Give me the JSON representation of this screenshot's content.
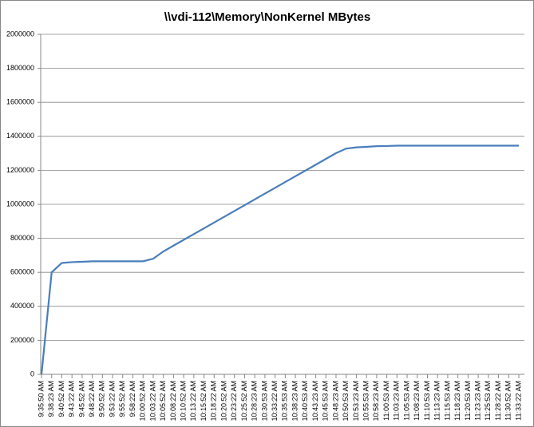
{
  "chart_data": {
    "type": "line",
    "title": "\\\\vdi-112\\Memory\\NonKernel MBytes",
    "categories": [
      "9:35:50 AM",
      "9:38:23 AM",
      "9:40:52 AM",
      "9:43:22 AM",
      "9:45:52 AM",
      "9:48:22 AM",
      "9:50:52 AM",
      "9:53:22 AM",
      "9:55:52 AM",
      "9:58:22 AM",
      "10:00:52 AM",
      "10:03:22 AM",
      "10:05:52 AM",
      "10:08:22 AM",
      "10:10:52 AM",
      "10:13:22 AM",
      "10:15:52 AM",
      "10:18:22 AM",
      "10:20:52 AM",
      "10:23:22 AM",
      "10:25:52 AM",
      "10:28:23 AM",
      "10:30:53 AM",
      "10:33:22 AM",
      "10:35:53 AM",
      "10:38:23 AM",
      "10:40:53 AM",
      "10:43:23 AM",
      "10:45:53 AM",
      "10:48:23 AM",
      "10:50:53 AM",
      "10:53:23 AM",
      "10:55:53 AM",
      "10:58:23 AM",
      "11:00:53 AM",
      "11:03:23 AM",
      "11:05:53 AM",
      "11:08:23 AM",
      "11:10:53 AM",
      "11:13:23 AM",
      "11:15:53 AM",
      "11:18:23 AM",
      "11:20:53 AM",
      "11:23:23 AM",
      "11:25:53 AM",
      "11:28:22 AM",
      "11:30:52 AM",
      "11:33:22 AM"
    ],
    "series": [
      {
        "name": "NonKernel MBytes",
        "color": "#4a7ebb",
        "values": [
          0,
          600000,
          655000,
          660000,
          662000,
          665000,
          665000,
          665000,
          665000,
          665000,
          665000,
          680000,
          723000,
          757000,
          791000,
          825000,
          859000,
          893000,
          927000,
          961000,
          995000,
          1029000,
          1063000,
          1097000,
          1131000,
          1165000,
          1199000,
          1233000,
          1267000,
          1301000,
          1328000,
          1335000,
          1338000,
          1342000,
          1343000,
          1345000,
          1345000,
          1345000,
          1345000,
          1345000,
          1345000,
          1345000,
          1345000,
          1345000,
          1345000,
          1345000,
          1345000,
          1345000
        ]
      }
    ],
    "ylim": [
      0,
      2000000
    ],
    "yticks": [
      0,
      200000,
      400000,
      600000,
      800000,
      1000000,
      1200000,
      1400000,
      1600000,
      1800000,
      2000000
    ],
    "grid": true
  }
}
